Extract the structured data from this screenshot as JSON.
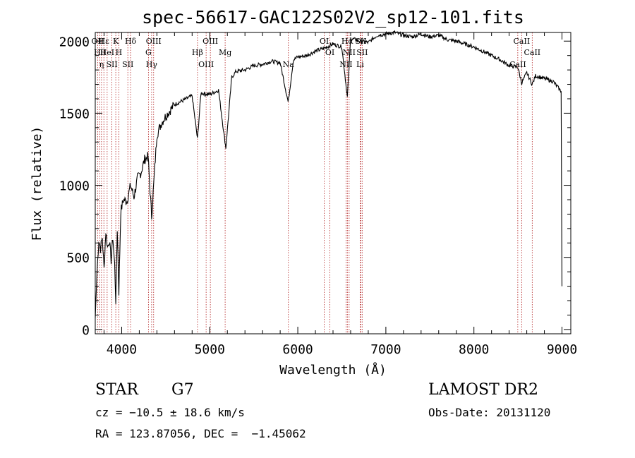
{
  "chart_data": {
    "type": "line",
    "title": "spec-56617-GAC122S02V2_sp12-101.fits",
    "xlabel": "Wavelength (Å)",
    "ylabel": "Flux (relative)",
    "xlim": [
      3700,
      9100
    ],
    "ylim": [
      -30,
      2060
    ],
    "xticks": [
      4000,
      5000,
      6000,
      7000,
      8000,
      9000
    ],
    "yticks": [
      0,
      500,
      1000,
      1500,
      2000
    ],
    "grid": false,
    "series": [
      {
        "x": [
          3700,
          3720,
          3740,
          3760,
          3780,
          3800,
          3820,
          3840,
          3860,
          3880,
          3900,
          3920,
          3933,
          3950,
          3968,
          3990,
          4020,
          4060,
          4101,
          4140,
          4180,
          4220,
          4260,
          4300,
          4340,
          4400,
          4450,
          4500,
          4600,
          4700,
          4800,
          4861,
          4900,
          5000,
          5100,
          5167,
          5183,
          5250,
          5300,
          5400,
          5500,
          5600,
          5700,
          5800,
          5890,
          5896,
          5950,
          6000,
          6100,
          6200,
          6300,
          6400,
          6500,
          6563,
          6600,
          6700,
          6800,
          6900,
          7000,
          7100,
          7200,
          7300,
          7400,
          7500,
          7600,
          7700,
          7800,
          7900,
          8000,
          8100,
          8200,
          8300,
          8400,
          8498,
          8542,
          8600,
          8662,
          8700,
          8800,
          8900,
          8990,
          9000
        ],
        "y": [
          80,
          400,
          620,
          560,
          640,
          420,
          680,
          570,
          620,
          480,
          640,
          450,
          200,
          700,
          260,
          820,
          900,
          890,
          1000,
          920,
          1050,
          1090,
          1180,
          1200,
          780,
          1350,
          1430,
          1480,
          1560,
          1590,
          1620,
          1320,
          1640,
          1630,
          1660,
          1330,
          1260,
          1750,
          1790,
          1800,
          1830,
          1840,
          1860,
          1850,
          1580,
          1600,
          1870,
          1890,
          1900,
          1930,
          1950,
          1980,
          1960,
          1610,
          2020,
          2000,
          1990,
          2040,
          2050,
          2060,
          2040,
          2030,
          2050,
          2030,
          2040,
          2010,
          2000,
          1980,
          1960,
          1930,
          1900,
          1870,
          1830,
          1820,
          1710,
          1780,
          1700,
          1760,
          1740,
          1720,
          1650,
          300
        ]
      }
    ],
    "lines": [
      {
        "x": 3727,
        "label": "OII"
      },
      {
        "x": 3750,
        "label": "Hθ"
      },
      {
        "x": 3771,
        "label": "η"
      },
      {
        "x": 3798,
        "label": "Hε"
      },
      {
        "x": 3835,
        "label": "HeI"
      },
      {
        "x": 3889,
        "label": "SII"
      },
      {
        "x": 3933,
        "label": "K"
      },
      {
        "x": 3968,
        "label": "H"
      },
      {
        "x": 4070,
        "label": "SII"
      },
      {
        "x": 4101,
        "label": "Hδ"
      },
      {
        "x": 4304,
        "label": "G"
      },
      {
        "x": 4340,
        "label": "Hγ"
      },
      {
        "x": 4363,
        "label": "OIII"
      },
      {
        "x": 4861,
        "label": "Hβ"
      },
      {
        "x": 4959,
        "label": "OIII"
      },
      {
        "x": 5007,
        "label": "OIII"
      },
      {
        "x": 5175,
        "label": "Mg"
      },
      {
        "x": 5893,
        "label": "Na"
      },
      {
        "x": 6300,
        "label": "OI"
      },
      {
        "x": 6364,
        "label": "OI"
      },
      {
        "x": 6548,
        "label": "NII"
      },
      {
        "x": 6563,
        "label": "Hα"
      },
      {
        "x": 6583,
        "label": "NII"
      },
      {
        "x": 6708,
        "label": "Li"
      },
      {
        "x": 6716,
        "label": "SII"
      },
      {
        "x": 6731,
        "label": "SII"
      },
      {
        "x": 8498,
        "label": "CaII"
      },
      {
        "x": 8542,
        "label": "CaII"
      },
      {
        "x": 8662,
        "label": "CaII"
      }
    ]
  },
  "info": {
    "obj_class": "STAR",
    "subclass": "G7",
    "survey": "LAMOST DR2",
    "cz": "cz = −10.5 ± 18.6 km/s",
    "obs_date": "Obs-Date: 20131120",
    "radec": "RA = 123.87056, DEC =  −1.45062"
  },
  "colors": {
    "spectrum": "#000000",
    "lines": "#b22222",
    "axes": "#000000"
  }
}
